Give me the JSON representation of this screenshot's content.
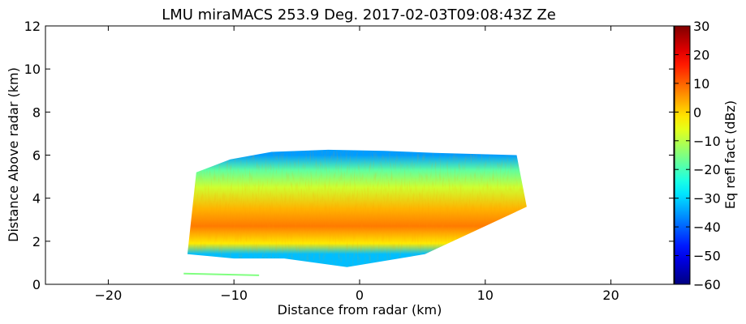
{
  "chart_data": {
    "type": "heatmap",
    "title": "LMU miraMACS 253.9 Deg. 2017-02-03T09:08:43Z  Ze",
    "xlabel": "Distance from radar (km)",
    "ylabel": "Distance Above radar  (km)",
    "xlim": [
      -25,
      25
    ],
    "ylim": [
      0,
      12
    ],
    "xticks": [
      -20,
      -10,
      0,
      10,
      20
    ],
    "yticks": [
      0,
      2,
      4,
      6,
      8,
      10,
      12
    ],
    "grid": false,
    "colorbar": {
      "label": "Eq refl fact (dBz)",
      "range": [
        -60,
        30
      ],
      "ticks": [
        -60,
        -50,
        -40,
        -30,
        -20,
        -10,
        0,
        10,
        20,
        30
      ],
      "colormap": "jet"
    },
    "echo_region": {
      "outline_km": [
        [
          -13.7,
          1.4
        ],
        [
          -13.0,
          5.2
        ],
        [
          -10.3,
          5.8
        ],
        [
          -7.0,
          6.15
        ],
        [
          -2.5,
          6.25
        ],
        [
          2.0,
          6.2
        ],
        [
          6.0,
          6.1
        ],
        [
          12.5,
          6.0
        ],
        [
          13.3,
          3.6
        ],
        [
          5.2,
          1.4
        ],
        [
          -1.0,
          0.8
        ],
        [
          -6.0,
          1.2
        ],
        [
          -10.0,
          1.2
        ]
      ],
      "bands": [
        {
          "y_km": 6.0,
          "value_dBz": -35
        },
        {
          "y_km": 5.3,
          "value_dBz": -18
        },
        {
          "y_km": 4.5,
          "value_dBz": -8
        },
        {
          "y_km": 3.5,
          "value_dBz": 3
        },
        {
          "y_km": 2.7,
          "value_dBz": 8
        },
        {
          "y_km": 1.9,
          "value_dBz": -2
        },
        {
          "y_km": 1.4,
          "value_dBz": -32
        }
      ]
    }
  }
}
